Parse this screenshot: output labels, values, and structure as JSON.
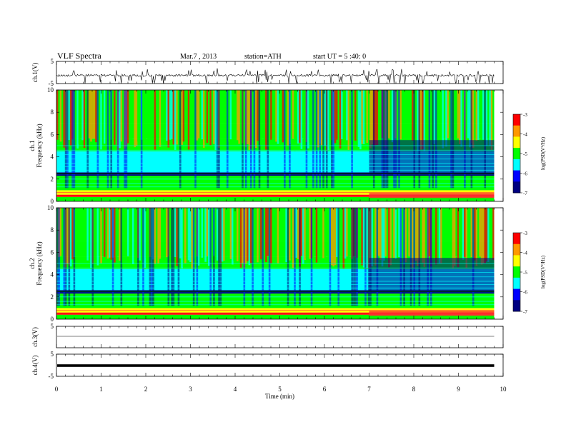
{
  "header": {
    "title": "VLF Spectra",
    "date": "Mar.7 , 2013",
    "station": "station=ATH",
    "start": "start UT = 5 :40: 0"
  },
  "colorbar": {
    "label": "log(PSD(V²/Hz)",
    "ticks": [
      -3,
      -4,
      -5,
      -6,
      -7
    ],
    "colors": [
      "#ff0000",
      "#ff9900",
      "#ffff00",
      "#00ff00",
      "#00ffff",
      "#0000ff",
      "#000080"
    ]
  },
  "chart_data": [
    {
      "type": "line",
      "ylabel": "ch.1(V)",
      "ylim": [
        -5,
        5
      ],
      "yticks": [
        5,
        -5
      ],
      "xlim": [
        0,
        10
      ],
      "description_of_series": "noisy baseline near 0 V with frequent spikes reaching about -5 V"
    },
    {
      "type": "heatmap",
      "ylabel": "ch.1 Frequency (kHz)",
      "ylim": [
        0,
        10
      ],
      "yticks": [
        0,
        2,
        4,
        6,
        8,
        10
      ],
      "xlim": [
        0,
        10
      ],
      "xmax_data": 9.8,
      "colorscale_range": [
        -7,
        -3
      ]
    },
    {
      "type": "heatmap",
      "ylabel": "ch.2 Frequency (kHz)",
      "ylim": [
        0,
        10
      ],
      "yticks": [
        0,
        2,
        4,
        6,
        8,
        10
      ],
      "xlim": [
        0,
        10
      ],
      "xmax_data": 9.8,
      "colorscale_range": [
        -7,
        -3
      ]
    },
    {
      "type": "line",
      "ylabel": "ch.3(V)",
      "ylim": [
        -5,
        5
      ],
      "yticks": [
        5
      ],
      "xlim": [
        0,
        10
      ]
    },
    {
      "type": "line",
      "ylabel": "ch.4(V)",
      "ylim": [
        -5,
        5
      ],
      "yticks": [
        5,
        -5
      ],
      "xlim": [
        0,
        10
      ],
      "xlabel": "Time (min)",
      "xticks": [
        0,
        1,
        2,
        3,
        4,
        5,
        6,
        7,
        8,
        9,
        10
      ]
    }
  ]
}
